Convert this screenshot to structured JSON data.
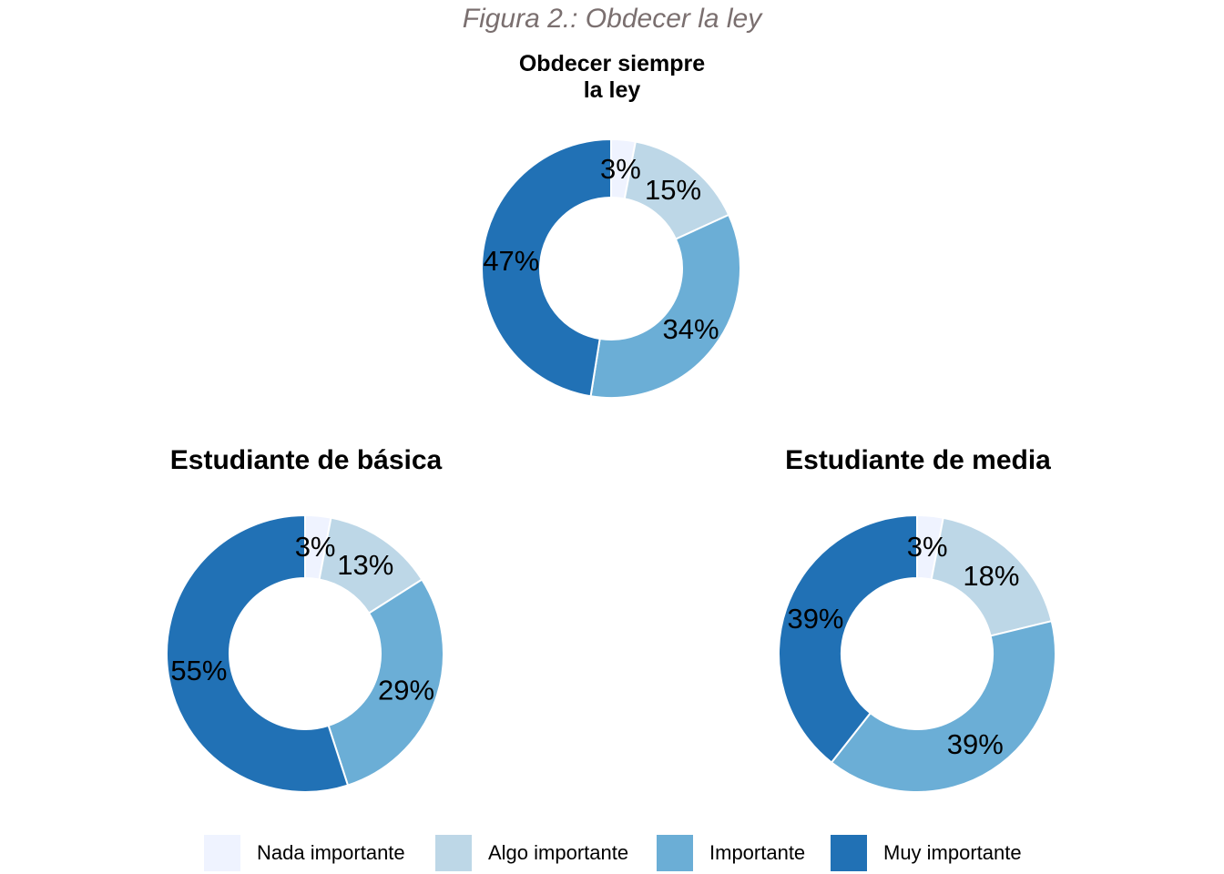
{
  "figure_caption": "Figura 2.: Obdecer la ley",
  "titles": {
    "top": [
      "Obdecer siempre",
      "la ley"
    ],
    "left": "Estudiante de básica",
    "right": "Estudiante de media"
  },
  "colors": {
    "nada": "#eff3ff",
    "algo": "#bdd7e7",
    "importante": "#6baed6",
    "muy": "#2171b5"
  },
  "legend": [
    {
      "label": "Nada importante",
      "color": "#eff3ff"
    },
    {
      "label": "Algo importante",
      "color": "#bdd7e7"
    },
    {
      "label": "Importante",
      "color": "#6baed6"
    },
    {
      "label": "Muy importante",
      "color": "#2171b5"
    }
  ],
  "chart_data": [
    {
      "type": "pie",
      "style": "donut",
      "title": "Obdecer siempre la ley",
      "categories": [
        "Nada importante",
        "Algo importante",
        "Importante",
        "Muy importante"
      ],
      "values": [
        3,
        15,
        34,
        47
      ],
      "labels": [
        "3%",
        "15%",
        "34%",
        "47%"
      ]
    },
    {
      "type": "pie",
      "style": "donut",
      "title": "Estudiante de básica",
      "categories": [
        "Nada importante",
        "Algo importante",
        "Importante",
        "Muy importante"
      ],
      "values": [
        3,
        13,
        29,
        55
      ],
      "labels": [
        "3%",
        "13%",
        "29%",
        "55%"
      ]
    },
    {
      "type": "pie",
      "style": "donut",
      "title": "Estudiante de media",
      "categories": [
        "Nada importante",
        "Algo importante",
        "Importante",
        "Muy importante"
      ],
      "values": [
        3,
        18,
        39,
        39
      ],
      "labels": [
        "3%",
        "18%",
        "39%",
        "39%"
      ]
    }
  ]
}
